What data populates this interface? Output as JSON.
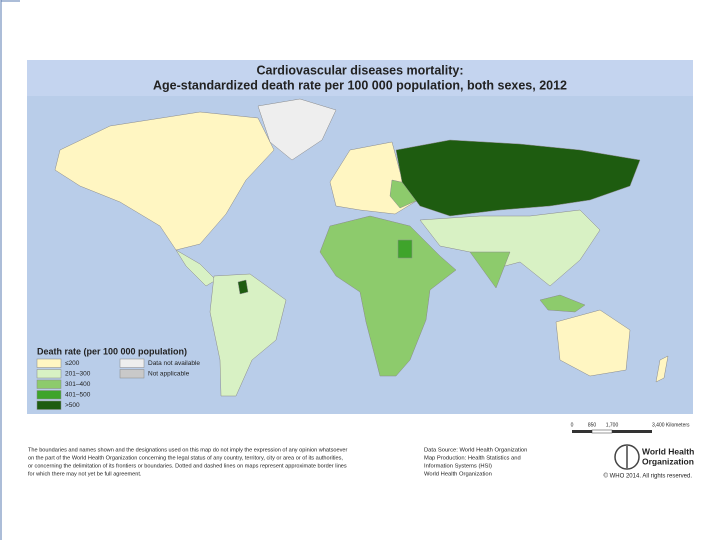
{
  "header": {
    "title": "Cardiovascular diseases mortality:",
    "subtitle": "Age-standardized death rate per 100 000 population, both sexes, 2012"
  },
  "legend": {
    "title": "Death rate (per 100 000 population)",
    "items": [
      {
        "label": "≤200",
        "color": "#fff6c2"
      },
      {
        "label": "201–300",
        "color": "#d8f1c4"
      },
      {
        "label": "301–400",
        "color": "#8dcb6c"
      },
      {
        "label": "401–500",
        "color": "#3fa42b"
      },
      {
        "label": ">500",
        "color": "#1e5c10"
      },
      {
        "label": "Data not available",
        "color": "#eeeeee"
      },
      {
        "label": "Not applicable",
        "color": "#c9c9c9"
      }
    ]
  },
  "scale": {
    "labels": [
      "0",
      "850",
      "1,700",
      "3,400 Kilometers"
    ]
  },
  "footer": {
    "disclaimer": [
      "The boundaries and names shown and the designations used on this map do not imply the expression of any opinion whatsoever",
      "on the part of the World Health Organization concerning the legal status of any country, territory, city or area or of its authorities,",
      "or concerning the delimitation of its frontiers or boundaries. Dotted and dashed lines on maps represent approximate border lines",
      "for which there may not yet be full agreement."
    ],
    "source": [
      "Data Source: World Health Organization",
      "Map Production: Health Statistics and",
      "Information Systems (HSI)",
      "World Health Organization"
    ],
    "logo": [
      "World Health",
      "Organization"
    ],
    "copyright": "© WHO 2014. All rights reserved."
  }
}
